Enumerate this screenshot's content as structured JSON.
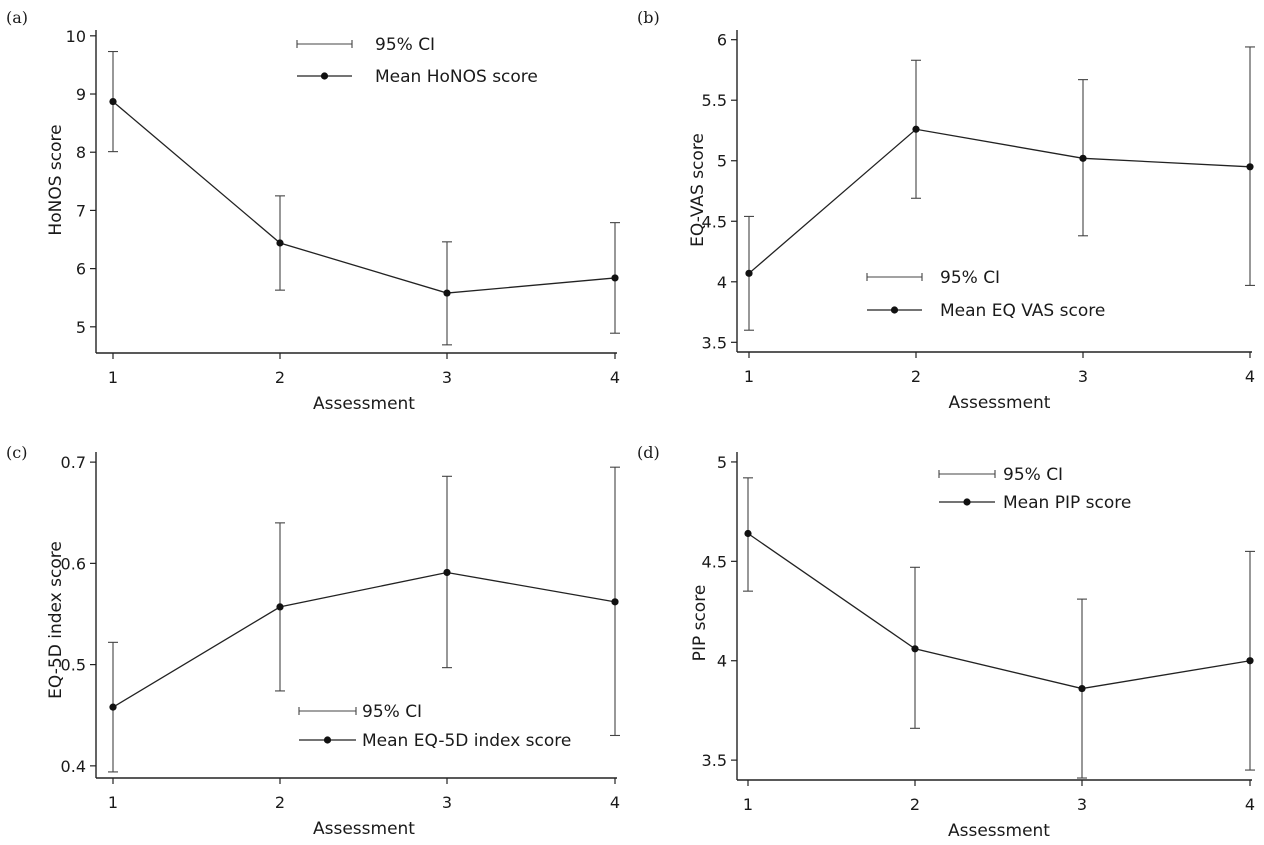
{
  "chart_data": [
    {
      "panel": "(a)",
      "type": "line",
      "xlabel": "Assessment",
      "ylabel": "HoNOS score",
      "x": [
        1,
        2,
        3,
        4
      ],
      "x_ticks": [
        "1",
        "2",
        "3",
        "4"
      ],
      "y_ticks": [
        "5",
        "6",
        "7",
        "8",
        "9",
        "10"
      ],
      "ylim": [
        4.55,
        10.1
      ],
      "grid": false,
      "series": [
        {
          "name": "Mean HoNOS score",
          "values": [
            8.87,
            6.44,
            5.58,
            5.84
          ]
        }
      ],
      "ci": [
        [
          8.01,
          9.73
        ],
        [
          5.63,
          7.25
        ],
        [
          4.69,
          6.46
        ],
        [
          4.89,
          6.79
        ]
      ],
      "legend": {
        "ci_label": "95% CI",
        "mean_label": "Mean HoNOS score",
        "placement": "top-center"
      }
    },
    {
      "panel": "(b)",
      "type": "line",
      "xlabel": "Assessment",
      "ylabel": "EQ-VAS score",
      "x": [
        1,
        2,
        3,
        4
      ],
      "x_ticks": [
        "1",
        "2",
        "3",
        "4"
      ],
      "y_ticks": [
        "3.5",
        "4",
        "4.5",
        "5",
        "5.5",
        "6"
      ],
      "ylim": [
        3.42,
        6.08
      ],
      "grid": false,
      "series": [
        {
          "name": "Mean EQ VAS score",
          "values": [
            4.07,
            5.26,
            5.02,
            4.95
          ]
        }
      ],
      "ci": [
        [
          3.6,
          4.54
        ],
        [
          4.69,
          5.83
        ],
        [
          4.38,
          5.67
        ],
        [
          3.97,
          5.94
        ]
      ],
      "legend": {
        "ci_label": "95% CI",
        "mean_label": "Mean EQ VAS score",
        "placement": "lower-center"
      }
    },
    {
      "panel": "(c)",
      "type": "line",
      "xlabel": "Assessment",
      "ylabel": "EQ-5D index score",
      "x": [
        1,
        2,
        3,
        4
      ],
      "x_ticks": [
        "1",
        "2",
        "3",
        "4"
      ],
      "y_ticks": [
        "0.4",
        "0.5",
        "0.6",
        "0.7"
      ],
      "ylim": [
        0.388,
        0.71
      ],
      "grid": false,
      "series": [
        {
          "name": "Mean EQ-5D index score",
          "values": [
            0.458,
            0.557,
            0.591,
            0.562
          ]
        }
      ],
      "ci": [
        [
          0.394,
          0.522
        ],
        [
          0.474,
          0.64
        ],
        [
          0.497,
          0.686
        ],
        [
          0.43,
          0.695
        ]
      ],
      "legend": {
        "ci_label": "95% CI",
        "mean_label": "Mean EQ-5D index score",
        "placement": "lower-center"
      }
    },
    {
      "panel": "(d)",
      "type": "line",
      "xlabel": "Assessment",
      "ylabel": "PIP score",
      "x": [
        1,
        2,
        3,
        4
      ],
      "x_ticks": [
        "1",
        "2",
        "3",
        "4"
      ],
      "y_ticks": [
        "3.5",
        "4",
        "4.5",
        "5"
      ],
      "ylim": [
        3.4,
        5.05
      ],
      "grid": false,
      "series": [
        {
          "name": "Mean PIP score",
          "values": [
            4.64,
            4.06,
            3.86,
            4.0
          ]
        }
      ],
      "ci": [
        [
          4.35,
          4.92
        ],
        [
          3.66,
          4.47
        ],
        [
          3.41,
          4.31
        ],
        [
          3.45,
          4.55
        ]
      ],
      "legend": {
        "ci_label": "95% CI",
        "mean_label": "Mean PIP score",
        "placement": "top-center"
      }
    }
  ]
}
